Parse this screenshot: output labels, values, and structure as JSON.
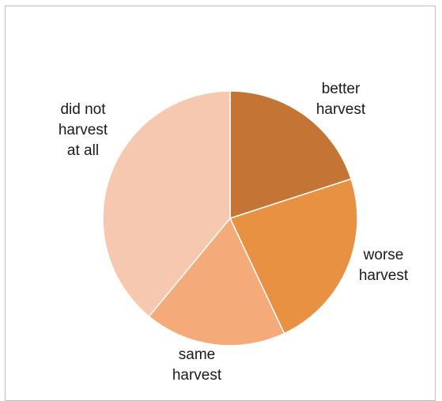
{
  "chart_data": {
    "type": "pie",
    "title": "",
    "start_angle_deg": 0,
    "direction": "clockwise",
    "slices": [
      {
        "label_lines": [
          "better",
          "harvest"
        ],
        "value": 20,
        "color": "#c47535"
      },
      {
        "label_lines": [
          "worse",
          "harvest"
        ],
        "value": 23,
        "color": "#e89142"
      },
      {
        "label_lines": [
          "same",
          "harvest"
        ],
        "value": 18,
        "color": "#f5aa7a"
      },
      {
        "label_lines": [
          "did not",
          "harvest",
          "at all"
        ],
        "value": 39,
        "color": "#f7c8b0"
      }
    ],
    "legend": "none"
  }
}
